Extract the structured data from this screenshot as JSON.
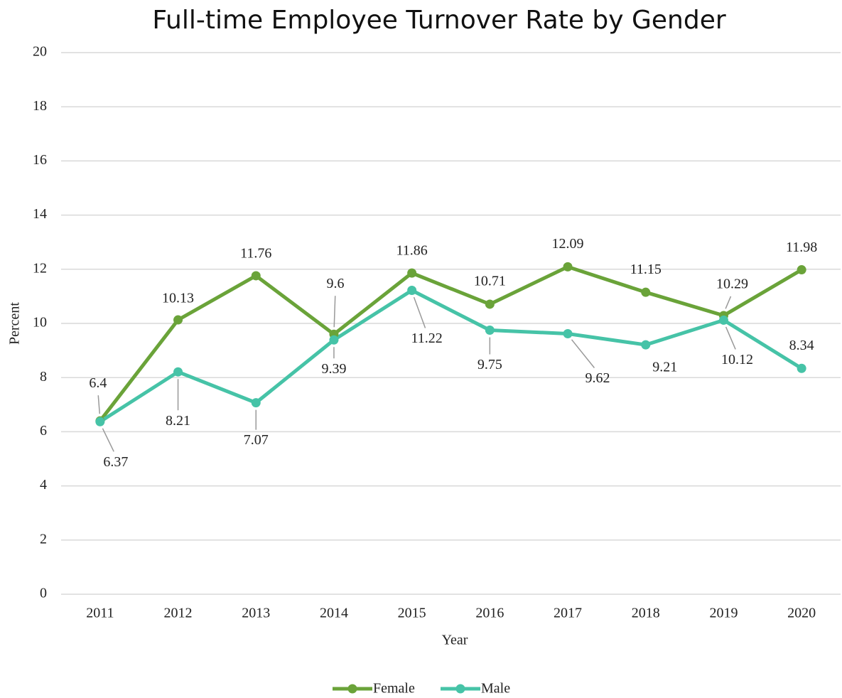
{
  "chart_data": {
    "type": "line",
    "title": "Full-time Employee Turnover Rate by Gender",
    "x_label": "Year",
    "y_label": "Percent",
    "categories": [
      "2011",
      "2012",
      "2013",
      "2014",
      "2015",
      "2016",
      "2017",
      "2018",
      "2019",
      "2020"
    ],
    "series": [
      {
        "name": "Female",
        "color": "#6aa339",
        "values": [
          6.4,
          10.13,
          11.76,
          9.6,
          11.86,
          10.71,
          12.09,
          11.15,
          10.29,
          11.98
        ]
      },
      {
        "name": "Male",
        "color": "#46c3a7",
        "values": [
          6.37,
          8.21,
          7.07,
          9.39,
          11.22,
          9.75,
          9.62,
          9.21,
          10.12,
          8.34
        ]
      }
    ],
    "ylim": [
      0,
      20
    ],
    "yticks": [
      0,
      2,
      4,
      6,
      8,
      10,
      12,
      14,
      16,
      18,
      20
    ],
    "grid": true,
    "legend": "bottom"
  }
}
